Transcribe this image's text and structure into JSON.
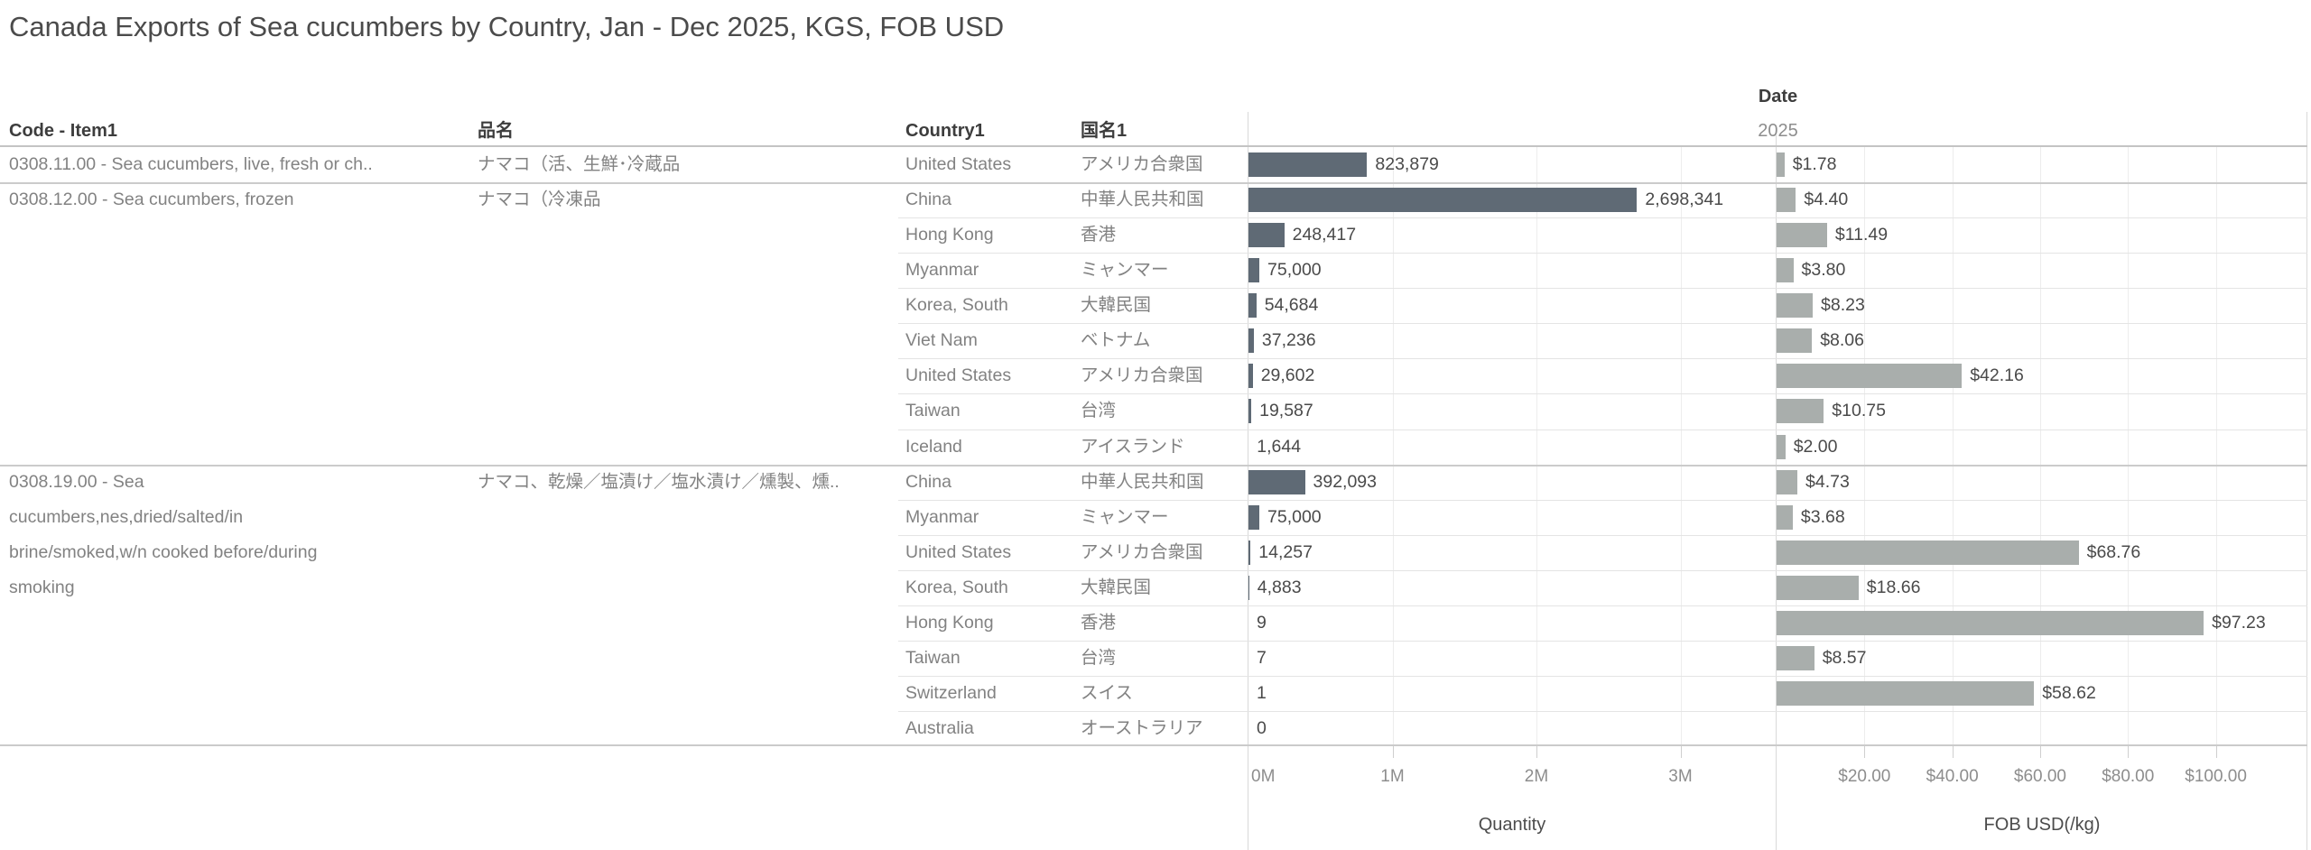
{
  "title": "Canada Exports of Sea cucumbers by Country, Jan - Dec 2025, KGS, FOB USD",
  "columns": {
    "code": "Code - Item1",
    "jp_name": "品名",
    "country": "Country1",
    "jp_country": "国名1"
  },
  "date_header": {
    "label": "Date",
    "year": "2025"
  },
  "colors": {
    "quantity_bar": "#5f6a75",
    "fob_bar": "#a9aeac"
  },
  "chart_data": {
    "type": "bar",
    "orientation": "horizontal",
    "title": "Canada Exports of Sea cucumbers by Country, Jan - Dec 2025, KGS, FOB USD",
    "year": "2025",
    "panels": [
      {
        "name": "Quantity",
        "axis_ticks": [
          "0M",
          "1M",
          "2M",
          "3M"
        ],
        "xlim": [
          0,
          3660000
        ],
        "grid": true
      },
      {
        "name": "FOB USD(/kg)",
        "axis_ticks": [
          "$20.00",
          "$40.00",
          "$60.00",
          "$80.00",
          "$100.00"
        ],
        "xlim": [
          0,
          121
        ],
        "grid": true
      }
    ],
    "groups": [
      {
        "code": "0308.11.00 - Sea cucumbers, live, fresh or ch..",
        "jp_name": "ナマコ（活、生鮮･冷蔵品",
        "rows": [
          {
            "country": "United States",
            "jp_country": "アメリカ合衆国",
            "quantity": 823879,
            "quantity_label": "823,879",
            "fob_usd_per_kg": 1.78,
            "fob_label": "$1.78"
          }
        ]
      },
      {
        "code": "0308.12.00 - Sea cucumbers, frozen",
        "jp_name": "ナマコ（冷凍品",
        "rows": [
          {
            "country": "China",
            "jp_country": "中華人民共和国",
            "quantity": 2698341,
            "quantity_label": "2,698,341",
            "fob_usd_per_kg": 4.4,
            "fob_label": "$4.40"
          },
          {
            "country": "Hong Kong",
            "jp_country": "香港",
            "quantity": 248417,
            "quantity_label": "248,417",
            "fob_usd_per_kg": 11.49,
            "fob_label": "$11.49"
          },
          {
            "country": "Myanmar",
            "jp_country": "ミャンマー",
            "quantity": 75000,
            "quantity_label": "75,000",
            "fob_usd_per_kg": 3.8,
            "fob_label": "$3.80"
          },
          {
            "country": "Korea, South",
            "jp_country": "大韓民国",
            "quantity": 54684,
            "quantity_label": "54,684",
            "fob_usd_per_kg": 8.23,
            "fob_label": "$8.23"
          },
          {
            "country": "Viet Nam",
            "jp_country": "ベトナム",
            "quantity": 37236,
            "quantity_label": "37,236",
            "fob_usd_per_kg": 8.06,
            "fob_label": "$8.06"
          },
          {
            "country": "United States",
            "jp_country": "アメリカ合衆国",
            "quantity": 29602,
            "quantity_label": "29,602",
            "fob_usd_per_kg": 42.16,
            "fob_label": "$42.16"
          },
          {
            "country": "Taiwan",
            "jp_country": "台湾",
            "quantity": 19587,
            "quantity_label": "19,587",
            "fob_usd_per_kg": 10.75,
            "fob_label": "$10.75"
          },
          {
            "country": "Iceland",
            "jp_country": "アイスランド",
            "quantity": 1644,
            "quantity_label": "1,644",
            "fob_usd_per_kg": 2.0,
            "fob_label": "$2.00"
          }
        ]
      },
      {
        "code": "0308.19.00 - Sea cucumbers,nes,dried/salted/in brine/smoked,w/n cooked before/during smoking",
        "jp_name": "ナマコ、乾燥／塩漬け／塩水漬け／燻製、燻..",
        "rows": [
          {
            "country": "China",
            "jp_country": "中華人民共和国",
            "quantity": 392093,
            "quantity_label": "392,093",
            "fob_usd_per_kg": 4.73,
            "fob_label": "$4.73"
          },
          {
            "country": "Myanmar",
            "jp_country": "ミャンマー",
            "quantity": 75000,
            "quantity_label": "75,000",
            "fob_usd_per_kg": 3.68,
            "fob_label": "$3.68"
          },
          {
            "country": "United States",
            "jp_country": "アメリカ合衆国",
            "quantity": 14257,
            "quantity_label": "14,257",
            "fob_usd_per_kg": 68.76,
            "fob_label": "$68.76"
          },
          {
            "country": "Korea, South",
            "jp_country": "大韓民国",
            "quantity": 4883,
            "quantity_label": "4,883",
            "fob_usd_per_kg": 18.66,
            "fob_label": "$18.66"
          },
          {
            "country": "Hong Kong",
            "jp_country": "香港",
            "quantity": 9,
            "quantity_label": "9",
            "fob_usd_per_kg": 97.23,
            "fob_label": "$97.23"
          },
          {
            "country": "Taiwan",
            "jp_country": "台湾",
            "quantity": 7,
            "quantity_label": "7",
            "fob_usd_per_kg": 8.57,
            "fob_label": "$8.57"
          },
          {
            "country": "Switzerland",
            "jp_country": "スイス",
            "quantity": 1,
            "quantity_label": "1",
            "fob_usd_per_kg": 58.62,
            "fob_label": "$58.62"
          },
          {
            "country": "Australia",
            "jp_country": "オーストラリア",
            "quantity": 0,
            "quantity_label": "0",
            "fob_usd_per_kg": null,
            "fob_label": null
          }
        ]
      }
    ]
  }
}
